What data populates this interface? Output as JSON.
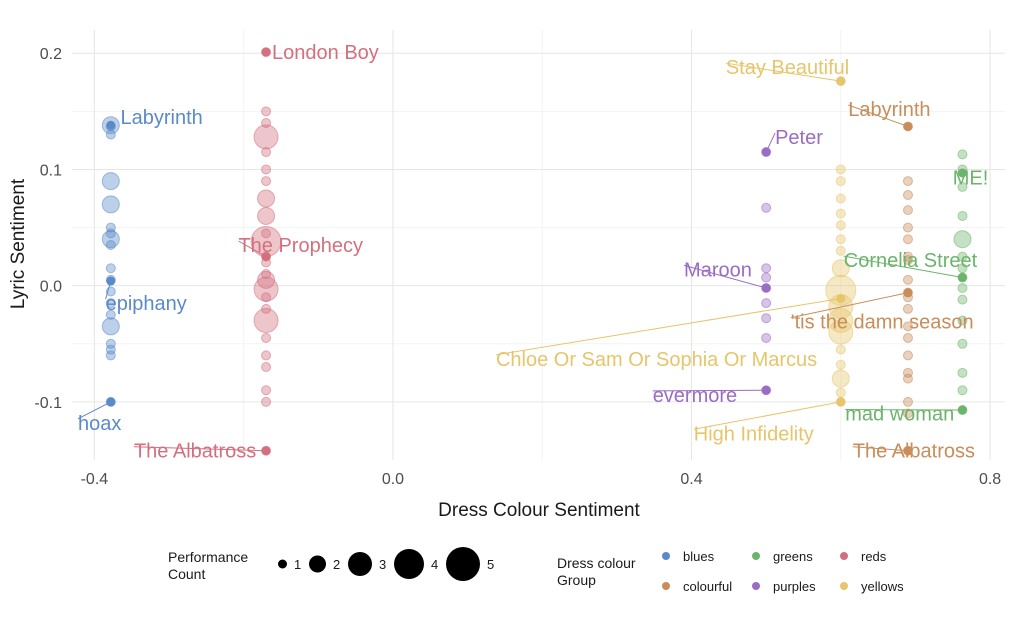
{
  "chart_data": {
    "type": "scatter",
    "xlabel": "Dress Colour Sentiment",
    "ylabel": "Lyric Sentiment",
    "xlim": [
      -0.43,
      0.82
    ],
    "ylim": [
      -0.15,
      0.22
    ],
    "x_ticks": [
      "-0.4",
      "0.0",
      "0.4",
      "0.8"
    ],
    "x_tick_values": [
      -0.4,
      0.0,
      0.4,
      0.8
    ],
    "y_ticks": [
      "-0.1",
      "0.0",
      "0.1",
      "0.2"
    ],
    "y_tick_values": [
      -0.1,
      0.0,
      0.1,
      0.2
    ],
    "grid": true,
    "colors": {
      "blues": "#5b8ac9",
      "colourful": "#c98d5a",
      "greens": "#6cb46c",
      "purples": "#9b6cc4",
      "reds": "#d3707f",
      "yellows": "#e6c56b"
    },
    "groups": {
      "blues": {
        "x": -0.378,
        "points": [
          [
            0.138,
            2
          ],
          [
            0.137,
            1
          ],
          [
            0.13,
            1
          ],
          [
            0.09,
            2
          ],
          [
            0.07,
            2
          ],
          [
            0.05,
            1
          ],
          [
            0.045,
            1
          ],
          [
            0.04,
            2
          ],
          [
            0.035,
            1
          ],
          [
            0.015,
            1
          ],
          [
            0.005,
            1
          ],
          [
            -0.005,
            1
          ],
          [
            -0.015,
            1
          ],
          [
            -0.025,
            1
          ],
          [
            -0.035,
            2
          ],
          [
            -0.05,
            1
          ],
          [
            -0.055,
            1
          ],
          [
            -0.06,
            1
          ],
          [
            -0.1,
            1
          ]
        ]
      },
      "reds": {
        "x": -0.17,
        "points": [
          [
            0.201,
            1
          ],
          [
            0.15,
            1
          ],
          [
            0.14,
            1
          ],
          [
            0.128,
            3
          ],
          [
            0.115,
            1
          ],
          [
            0.1,
            1
          ],
          [
            0.09,
            1
          ],
          [
            0.075,
            2
          ],
          [
            0.06,
            2
          ],
          [
            0.045,
            1
          ],
          [
            0.038,
            4
          ],
          [
            0.025,
            1
          ],
          [
            0.02,
            1
          ],
          [
            0.01,
            1
          ],
          [
            0.005,
            2
          ],
          [
            -0.003,
            3
          ],
          [
            -0.01,
            1
          ],
          [
            -0.02,
            1
          ],
          [
            -0.03,
            3
          ],
          [
            -0.045,
            1
          ],
          [
            -0.06,
            1
          ],
          [
            -0.07,
            1
          ],
          [
            -0.09,
            1
          ],
          [
            -0.1,
            1
          ],
          [
            -0.142,
            1
          ]
        ]
      },
      "purples": {
        "x": 0.5,
        "points": [
          [
            0.115,
            1
          ],
          [
            0.067,
            1
          ],
          [
            0.015,
            1
          ],
          [
            0.007,
            1
          ],
          [
            -0.002,
            1
          ],
          [
            -0.015,
            1
          ],
          [
            -0.028,
            1
          ],
          [
            -0.045,
            1
          ],
          [
            -0.09,
            1
          ]
        ]
      },
      "yellows": {
        "x": 0.6,
        "points": [
          [
            0.176,
            1
          ],
          [
            0.1,
            1
          ],
          [
            0.09,
            1
          ],
          [
            0.075,
            1
          ],
          [
            0.062,
            1
          ],
          [
            0.052,
            1
          ],
          [
            0.04,
            1
          ],
          [
            0.03,
            1
          ],
          [
            0.015,
            2
          ],
          [
            -0.004,
            4
          ],
          [
            -0.018,
            3
          ],
          [
            -0.03,
            3
          ],
          [
            -0.04,
            3
          ],
          [
            -0.055,
            1
          ],
          [
            -0.068,
            1
          ],
          [
            -0.08,
            2
          ],
          [
            -0.092,
            1
          ],
          [
            -0.1,
            1
          ]
        ]
      },
      "colourful": {
        "x": 0.69,
        "points": [
          [
            0.137,
            1
          ],
          [
            0.09,
            1
          ],
          [
            0.078,
            1
          ],
          [
            0.065,
            1
          ],
          [
            0.05,
            1
          ],
          [
            0.04,
            1
          ],
          [
            0.025,
            1
          ],
          [
            0.022,
            1
          ],
          [
            0.005,
            1
          ],
          [
            -0.006,
            1
          ],
          [
            -0.01,
            1
          ],
          [
            -0.02,
            1
          ],
          [
            -0.035,
            1
          ],
          [
            -0.045,
            1
          ],
          [
            -0.06,
            1
          ],
          [
            -0.075,
            1
          ],
          [
            -0.08,
            1
          ],
          [
            -0.1,
            1
          ],
          [
            -0.11,
            1
          ],
          [
            -0.142,
            1
          ]
        ]
      },
      "greens": {
        "x": 0.763,
        "points": [
          [
            0.113,
            1
          ],
          [
            0.1,
            1
          ],
          [
            0.085,
            1
          ],
          [
            0.06,
            1
          ],
          [
            0.04,
            2
          ],
          [
            0.025,
            1
          ],
          [
            0.015,
            1
          ],
          [
            0.007,
            1
          ],
          [
            -0.002,
            1
          ],
          [
            -0.012,
            1
          ],
          [
            -0.03,
            1
          ],
          [
            -0.05,
            1
          ],
          [
            -0.075,
            1
          ],
          [
            -0.09,
            1
          ],
          [
            -0.107,
            1
          ]
        ]
      }
    },
    "annotations": [
      {
        "text": "London Boy",
        "group": "reds",
        "px": -0.17,
        "py": 0.201,
        "lx": -0.162,
        "ly": 0.201,
        "anchor": "start"
      },
      {
        "text": "Labyrinth",
        "group": "blues",
        "px": -0.378,
        "py": 0.138,
        "lx": -0.365,
        "ly": 0.145,
        "anchor": "start"
      },
      {
        "text": "The Prophecy",
        "group": "reds",
        "px": -0.17,
        "py": 0.025,
        "lx": -0.207,
        "ly": 0.035,
        "anchor": "start"
      },
      {
        "text": "epiphany",
        "group": "blues",
        "px": -0.378,
        "py": 0.004,
        "lx": -0.385,
        "ly": -0.015,
        "anchor": "start"
      },
      {
        "text": "hoax",
        "group": "blues",
        "px": -0.378,
        "py": -0.1,
        "lx": -0.422,
        "ly": -0.118,
        "anchor": "start"
      },
      {
        "text": "The Albatross",
        "group": "reds",
        "px": -0.17,
        "py": -0.142,
        "lx": -0.347,
        "ly": -0.142,
        "anchor": "start"
      },
      {
        "text": "Stay Beautiful",
        "group": "yellows",
        "px": 0.6,
        "py": 0.176,
        "lx": 0.446,
        "ly": 0.188,
        "anchor": "start"
      },
      {
        "text": "Labyrinth",
        "group": "colourful",
        "px": 0.69,
        "py": 0.137,
        "lx": 0.61,
        "ly": 0.152,
        "anchor": "start"
      },
      {
        "text": "Peter",
        "group": "purples",
        "px": 0.5,
        "py": 0.115,
        "lx": 0.512,
        "ly": 0.128,
        "anchor": "start"
      },
      {
        "text": "ME!",
        "group": "greens",
        "px": 0.763,
        "py": 0.097,
        "lx": 0.75,
        "ly": 0.093,
        "anchor": "start"
      },
      {
        "text": "Cornelia Street",
        "group": "greens",
        "px": 0.763,
        "py": 0.007,
        "lx": 0.604,
        "ly": 0.022,
        "anchor": "start"
      },
      {
        "text": "Maroon",
        "group": "purples",
        "px": 0.5,
        "py": -0.002,
        "lx": 0.39,
        "ly": 0.014,
        "anchor": "start"
      },
      {
        "text": "'tis the damn season",
        "group": "colourful",
        "px": 0.69,
        "py": -0.006,
        "lx": 0.533,
        "ly": -0.031,
        "anchor": "start"
      },
      {
        "text": "Chloe Or Sam Or Sophia Or Marcus",
        "group": "yellows",
        "px": 0.6,
        "py": -0.011,
        "lx": 0.138,
        "ly": -0.063,
        "anchor": "start"
      },
      {
        "text": "evermore",
        "group": "purples",
        "px": 0.5,
        "py": -0.09,
        "lx": 0.348,
        "ly": -0.094,
        "anchor": "start"
      },
      {
        "text": "mad woman",
        "group": "greens",
        "px": 0.763,
        "py": -0.107,
        "lx": 0.606,
        "ly": -0.11,
        "anchor": "start"
      },
      {
        "text": "High Infidelity",
        "group": "yellows",
        "px": 0.6,
        "py": -0.1,
        "lx": 0.403,
        "ly": -0.127,
        "anchor": "start"
      },
      {
        "text": "The Albatross",
        "group": "colourful",
        "px": 0.69,
        "py": -0.142,
        "lx": 0.616,
        "ly": -0.142,
        "anchor": "start"
      }
    ]
  },
  "legend": {
    "size_title_line1": "Performance",
    "size_title_line2": "Count",
    "size_items": [
      "1",
      "2",
      "3",
      "4",
      "5"
    ],
    "colour_title_line1": "Dress colour",
    "colour_title_line2": "Group",
    "colour_items": [
      {
        "label": "blues",
        "key": "blues"
      },
      {
        "label": "greens",
        "key": "greens"
      },
      {
        "label": "reds",
        "key": "reds"
      },
      {
        "label": "colourful",
        "key": "colourful"
      },
      {
        "label": "purples",
        "key": "purples"
      },
      {
        "label": "yellows",
        "key": "yellows"
      }
    ]
  }
}
